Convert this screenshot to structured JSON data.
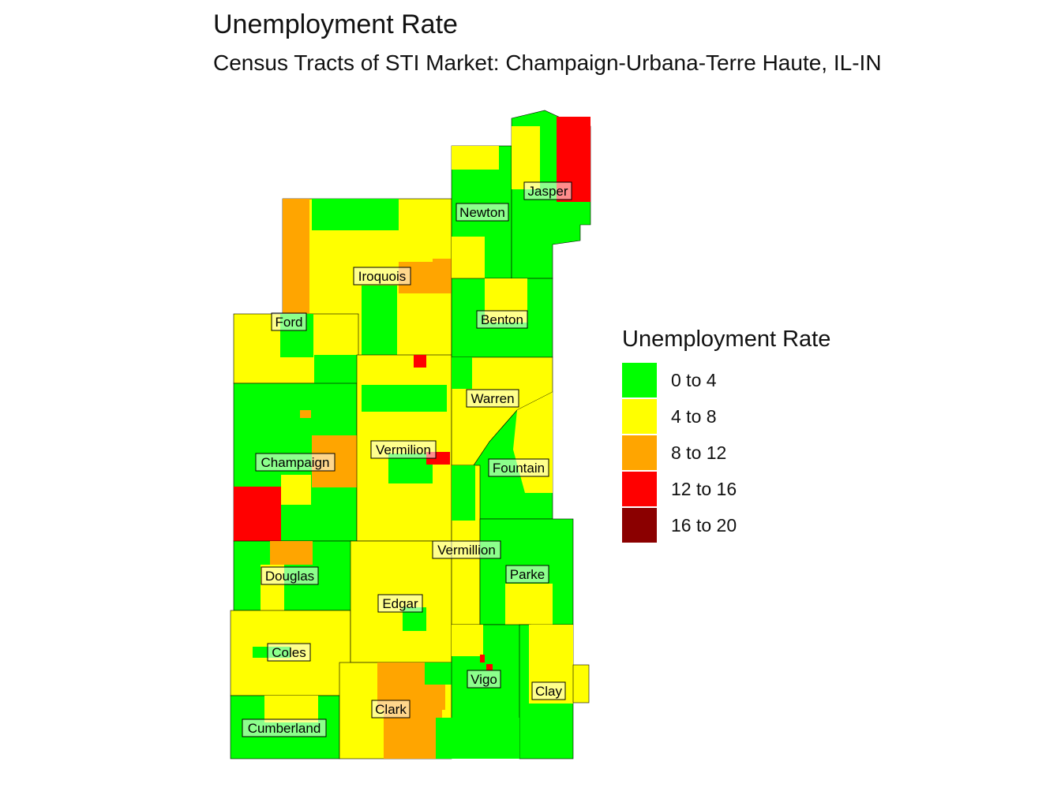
{
  "title": "Unemployment Rate",
  "subtitle": "Census Tracts of STI Market: Champaign-Urbana-Terre Haute, IL-IN",
  "legend": {
    "title": "Unemployment Rate",
    "items": [
      {
        "label": "0 to 4",
        "color": "#00ff00"
      },
      {
        "label": "4 to 8",
        "color": "#ffff00"
      },
      {
        "label": "8 to 12",
        "color": "#ffa500"
      },
      {
        "label": "12 to 16",
        "color": "#ff0000"
      },
      {
        "label": "16 to 20",
        "color": "#8b0000"
      }
    ]
  },
  "counties": {
    "jasper": "Jasper",
    "newton": "Newton",
    "iroquois": "Iroquois",
    "benton": "Benton",
    "ford": "Ford",
    "warren": "Warren",
    "vermilion": "Vermilion",
    "fountain": "Fountain",
    "champaign": "Champaign",
    "vermillion": "Vermillion",
    "parke": "Parke",
    "douglas": "Douglas",
    "edgar": "Edgar",
    "coles": "Coles",
    "vigo": "Vigo",
    "clay": "Clay",
    "clark": "Clark",
    "cumberland": "Cumberland"
  }
}
